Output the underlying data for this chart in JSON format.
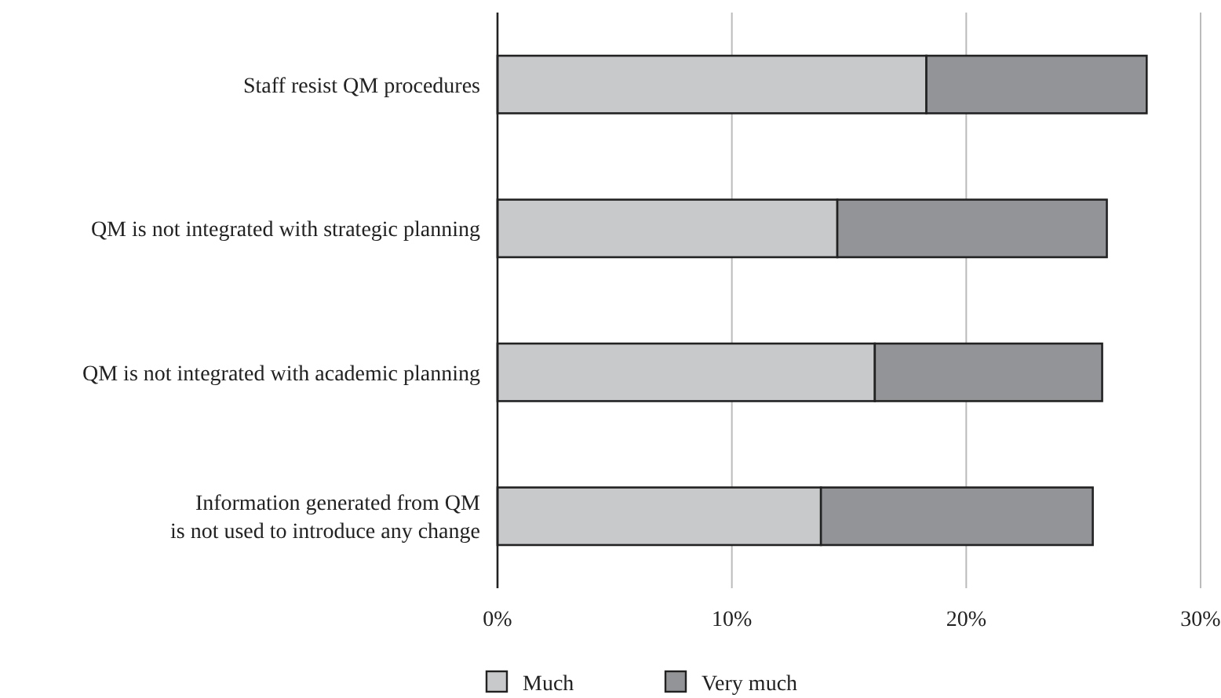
{
  "chart_data": {
    "type": "bar",
    "orientation": "horizontal",
    "stacked": true,
    "categories": [
      "Staff resist QM procedures",
      "QM is not integrated with strategic planning",
      "QM is not integrated with academic planning",
      "Information generated from QM\nis not used to introduce any change"
    ],
    "series": [
      {
        "name": "Much",
        "color": "#c8c9cb",
        "values": [
          18.3,
          14.5,
          16.1,
          13.8
        ]
      },
      {
        "name": "Very much",
        "color": "#939497",
        "values": [
          9.4,
          11.5,
          9.7,
          11.6
        ]
      }
    ],
    "xlim": [
      0,
      30
    ],
    "xticks": [
      {
        "value": 0,
        "label": "0%"
      },
      {
        "value": 10,
        "label": "10%"
      },
      {
        "value": 20,
        "label": "20%"
      },
      {
        "value": 30,
        "label": "30%"
      }
    ],
    "grid": "x",
    "legend": "bottom"
  }
}
